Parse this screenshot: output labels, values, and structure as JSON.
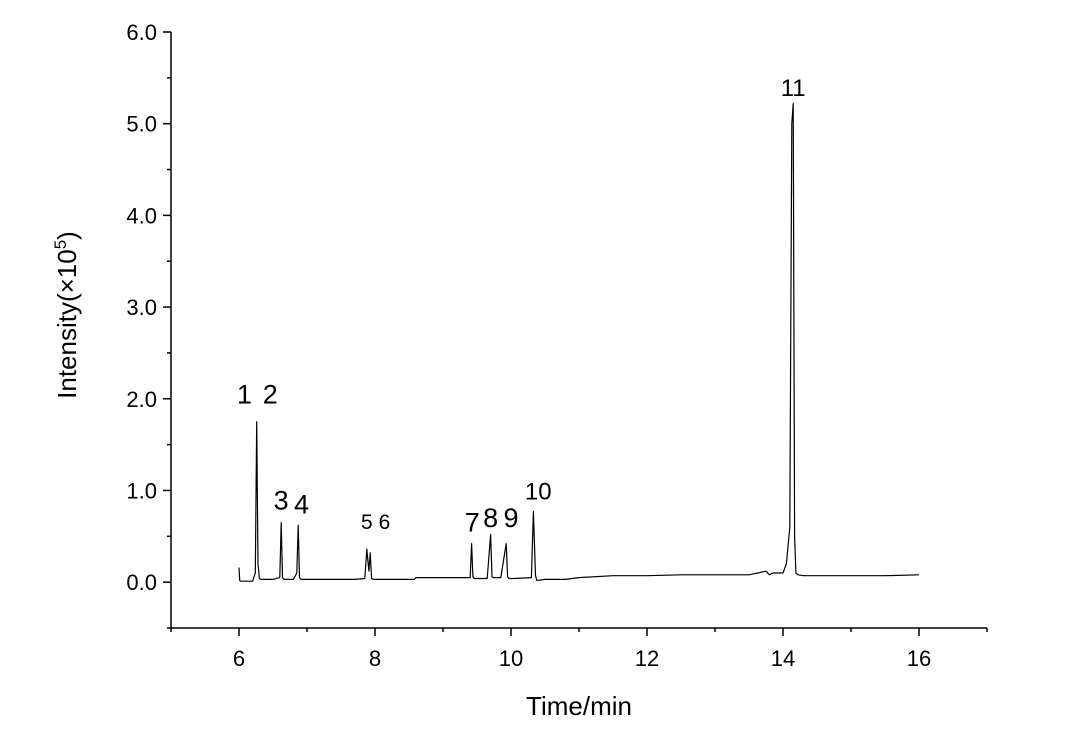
{
  "chart_data": {
    "type": "line",
    "xlabel": "Time/min",
    "ylabel": "Intensity(×10",
    "ylabel_sup": "5",
    "ylabel_close": ")",
    "xlim": [
      5,
      17
    ],
    "ylim": [
      -0.5,
      6.0
    ],
    "x_ticks": [
      "6",
      "8",
      "10",
      "12",
      "14",
      "16"
    ],
    "x_tick_values": [
      6,
      8,
      10,
      12,
      14,
      16
    ],
    "y_ticks": [
      "0.0",
      "1.0",
      "2.0",
      "3.0",
      "4.0",
      "5.0",
      "6.0"
    ],
    "y_tick_values": [
      0,
      1,
      2,
      3,
      4,
      5,
      6
    ],
    "grid": false,
    "series": [
      {
        "color": "#000000",
        "x": [
          6.0,
          6.01,
          6.02,
          6.05,
          6.1,
          6.15,
          6.2,
          6.24,
          6.26,
          6.28,
          6.3,
          6.32,
          6.4,
          6.5,
          6.6,
          6.62,
          6.64,
          6.66,
          6.68,
          6.72,
          6.8,
          6.85,
          6.87,
          6.89,
          6.91,
          6.95,
          7.1,
          7.4,
          7.7,
          7.85,
          7.88,
          7.91,
          7.93,
          7.95,
          7.97,
          7.99,
          8.02,
          8.2,
          8.55,
          8.58,
          8.6,
          9.0,
          9.4,
          9.42,
          9.44,
          9.46,
          9.48,
          9.52,
          9.65,
          9.7,
          9.72,
          9.74,
          9.77,
          9.85,
          9.93,
          9.95,
          9.97,
          9.99,
          10.05,
          10.3,
          10.33,
          10.36,
          10.38,
          10.41,
          10.5,
          10.8,
          11.0,
          11.5,
          12.0,
          12.5,
          13.0,
          13.5,
          13.75,
          13.8,
          13.85,
          14.0,
          14.05,
          14.1,
          14.13,
          14.15,
          14.17,
          14.19,
          14.22,
          14.3,
          14.5,
          15.0,
          15.5,
          16.0
        ],
        "y": [
          0.16,
          0.02,
          0.01,
          0.01,
          0.01,
          0.01,
          0.01,
          0.1,
          1.75,
          0.2,
          0.04,
          0.03,
          0.03,
          0.03,
          0.05,
          0.65,
          0.05,
          0.03,
          0.03,
          0.03,
          0.03,
          0.1,
          0.62,
          0.05,
          0.03,
          0.03,
          0.03,
          0.03,
          0.03,
          0.04,
          0.36,
          0.12,
          0.32,
          0.04,
          0.03,
          0.03,
          0.03,
          0.03,
          0.03,
          0.03,
          0.05,
          0.05,
          0.05,
          0.42,
          0.06,
          0.04,
          0.04,
          0.04,
          0.04,
          0.52,
          0.06,
          0.05,
          0.05,
          0.05,
          0.42,
          0.06,
          0.04,
          0.04,
          0.04,
          0.05,
          0.77,
          0.07,
          0.02,
          0.02,
          0.03,
          0.03,
          0.05,
          0.07,
          0.07,
          0.08,
          0.08,
          0.08,
          0.12,
          0.08,
          0.1,
          0.1,
          0.2,
          0.6,
          5.0,
          5.22,
          0.5,
          0.1,
          0.08,
          0.07,
          0.07,
          0.07,
          0.07,
          0.08
        ]
      }
    ],
    "annotations": [
      {
        "text": "1",
        "x": 6.08,
        "y": 1.95,
        "size": "large"
      },
      {
        "text": "2",
        "x": 6.46,
        "y": 1.95,
        "size": "large"
      },
      {
        "text": "3",
        "x": 6.62,
        "y": 0.79,
        "size": "large"
      },
      {
        "text": "4",
        "x": 6.92,
        "y": 0.75,
        "size": "large"
      },
      {
        "text": "5",
        "x": 7.88,
        "y": 0.58,
        "size": "small"
      },
      {
        "text": "6",
        "x": 8.14,
        "y": 0.58,
        "size": "small"
      },
      {
        "text": "7",
        "x": 9.43,
        "y": 0.55,
        "size": "large"
      },
      {
        "text": "8",
        "x": 9.7,
        "y": 0.6,
        "size": "large"
      },
      {
        "text": "9",
        "x": 10.0,
        "y": 0.6,
        "size": "large"
      },
      {
        "text": "10",
        "x": 10.4,
        "y": 0.9,
        "size": "medium"
      },
      {
        "text": "11",
        "x": 14.15,
        "y": 5.3,
        "size": "medium"
      }
    ]
  }
}
